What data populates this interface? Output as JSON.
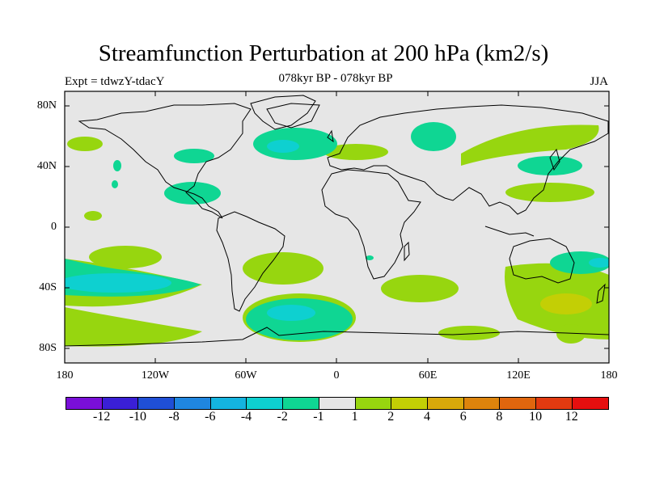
{
  "header": {
    "title": "Streamfunction Perturbation at 200 hPa (km2/s)",
    "subtitle": "078kyr BP - 078kyr BP",
    "left_label": "Expt = tdwzY-tdacY",
    "right_label": "JJA"
  },
  "axes": {
    "lat_labels": [
      "80N",
      "40N",
      "0",
      "40S",
      "80S"
    ],
    "lon_labels": [
      "180",
      "120W",
      "60W",
      "0",
      "60E",
      "120E",
      "180"
    ]
  },
  "colorbar": {
    "colors": [
      "#7a0fd9",
      "#3a1fd6",
      "#1f4fd6",
      "#1f86e0",
      "#14b4e0",
      "#0ed0d0",
      "#0fd693",
      "#e6e6e6",
      "#97d60f",
      "#c3cf05",
      "#d9a90a",
      "#dd840c",
      "#e0660e",
      "#e23a10",
      "#e60f0f"
    ],
    "labels": [
      "-12",
      "-10",
      "-8",
      "-6",
      "-4",
      "-2",
      "-1",
      "1",
      "2",
      "4",
      "6",
      "8",
      "10",
      "12"
    ]
  }
}
